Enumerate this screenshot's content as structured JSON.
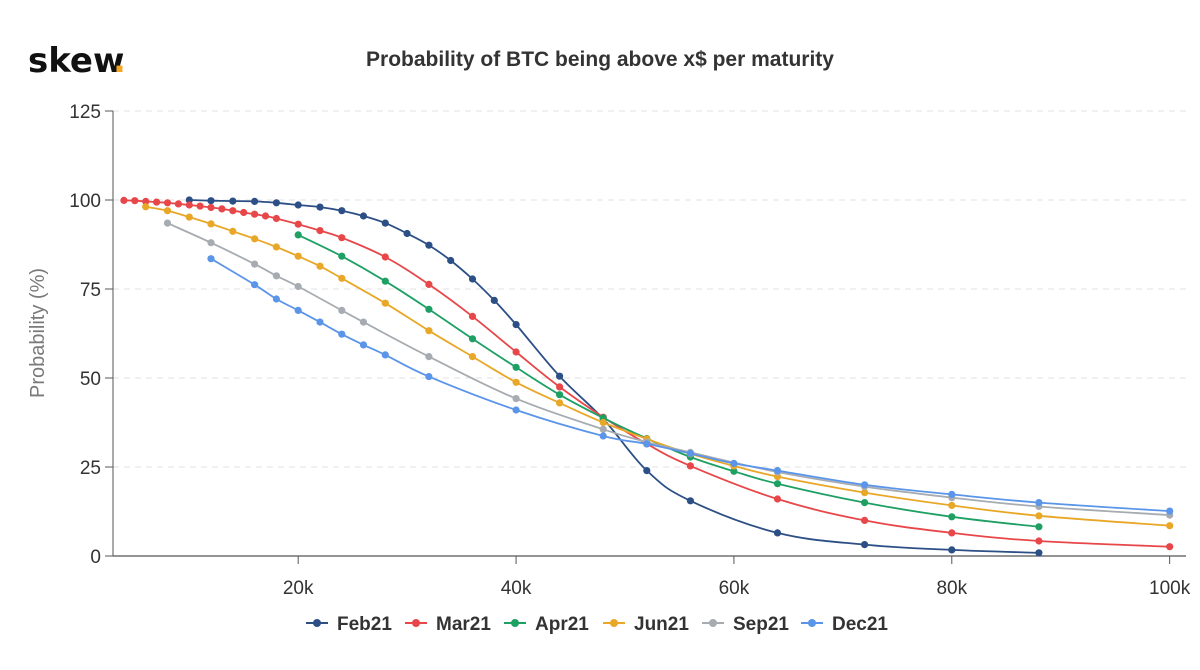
{
  "brand": {
    "name": "skew",
    "dot": ".",
    "dot_color": "#f5a623"
  },
  "chart_data": {
    "type": "line",
    "title": "Probability of BTC being above x$ per maturity",
    "xlabel": "",
    "ylabel": "Probability (%)",
    "xlim": [
      3000,
      101500
    ],
    "ylim": [
      0,
      125
    ],
    "x_ticks": [
      20000,
      40000,
      60000,
      80000,
      100000
    ],
    "x_tick_labels": [
      "20k",
      "40k",
      "60k",
      "80k",
      "100k"
    ],
    "y_ticks": [
      0,
      25,
      50,
      75,
      100,
      125
    ],
    "y_tick_labels": [
      "0",
      "25",
      "50",
      "75",
      "100",
      "125"
    ],
    "grid": "horizontal dashed",
    "legend_position": "bottom-center",
    "series": [
      {
        "name": "Feb21",
        "color": "#2c4f86",
        "x": [
          10000,
          12000,
          14000,
          16000,
          18000,
          20000,
          22000,
          24000,
          26000,
          28000,
          30000,
          32000,
          34000,
          36000,
          38000,
          40000,
          44000,
          48000,
          52000,
          56000,
          64000,
          72000,
          80000,
          88000
        ],
        "y": [
          100,
          99.8,
          99.7,
          99.6,
          99.2,
          98.6,
          98.0,
          97.0,
          95.5,
          93.5,
          90.6,
          87.3,
          83.0,
          77.8,
          71.8,
          65.0,
          50.5,
          38.5,
          24.0,
          15.5,
          6.5,
          3.2,
          1.7,
          0.9
        ]
      },
      {
        "name": "Mar21",
        "color": "#e8474a",
        "x": [
          4000,
          5000,
          6000,
          7000,
          8000,
          9000,
          10000,
          11000,
          12000,
          13000,
          14000,
          15000,
          16000,
          17000,
          18000,
          20000,
          22000,
          24000,
          28000,
          32000,
          36000,
          40000,
          44000,
          48000,
          52000,
          56000,
          64000,
          72000,
          80000,
          88000,
          100000
        ],
        "y": [
          99.9,
          99.8,
          99.6,
          99.4,
          99.2,
          98.9,
          98.6,
          98.3,
          97.9,
          97.5,
          97.0,
          96.5,
          96.0,
          95.5,
          94.8,
          93.2,
          91.4,
          89.4,
          84.0,
          76.3,
          67.3,
          57.3,
          47.5,
          39.0,
          31.5,
          25.3,
          16.0,
          10.0,
          6.5,
          4.2,
          2.6
        ]
      },
      {
        "name": "Apr21",
        "color": "#1ea064",
        "x": [
          20000,
          24000,
          28000,
          32000,
          36000,
          40000,
          44000,
          48000,
          52000,
          56000,
          60000,
          64000,
          72000,
          80000,
          88000
        ],
        "y": [
          90.2,
          84.2,
          77.2,
          69.3,
          61.0,
          53.0,
          45.3,
          38.8,
          33.0,
          27.8,
          23.8,
          20.3,
          15.0,
          11.0,
          8.2
        ]
      },
      {
        "name": "Jun21",
        "color": "#e9a728",
        "x": [
          6000,
          8000,
          10000,
          12000,
          14000,
          16000,
          18000,
          20000,
          22000,
          24000,
          28000,
          32000,
          36000,
          40000,
          44000,
          48000,
          52000,
          56000,
          60000,
          64000,
          72000,
          80000,
          88000,
          100000
        ],
        "y": [
          98.1,
          97.0,
          95.2,
          93.3,
          91.2,
          89.1,
          86.8,
          84.2,
          81.4,
          78.0,
          71.0,
          63.3,
          56.0,
          48.8,
          43.0,
          37.5,
          32.9,
          28.7,
          25.3,
          22.3,
          17.8,
          14.2,
          11.3,
          8.5
        ]
      },
      {
        "name": "Sep21",
        "color": "#a6acb1",
        "x": [
          8000,
          12000,
          16000,
          18000,
          20000,
          24000,
          26000,
          32000,
          40000,
          48000,
          52000,
          56000,
          64000,
          72000,
          80000,
          88000,
          100000
        ],
        "y": [
          93.5,
          88.0,
          82.0,
          78.7,
          75.7,
          69.0,
          65.7,
          56.0,
          44.2,
          35.6,
          32.0,
          29.1,
          23.6,
          19.5,
          16.4,
          13.9,
          11.5
        ]
      },
      {
        "name": "Dec21",
        "color": "#5b95ea",
        "x": [
          12000,
          16000,
          18000,
          20000,
          22000,
          24000,
          26000,
          28000,
          32000,
          40000,
          48000,
          52000,
          56000,
          60000,
          64000,
          72000,
          80000,
          88000,
          100000
        ],
        "y": [
          83.5,
          76.2,
          72.2,
          69.0,
          65.7,
          62.3,
          59.3,
          56.5,
          50.4,
          41.0,
          33.7,
          31.5,
          28.8,
          26.0,
          24.0,
          20.0,
          17.3,
          15.0,
          12.6
        ]
      }
    ]
  }
}
